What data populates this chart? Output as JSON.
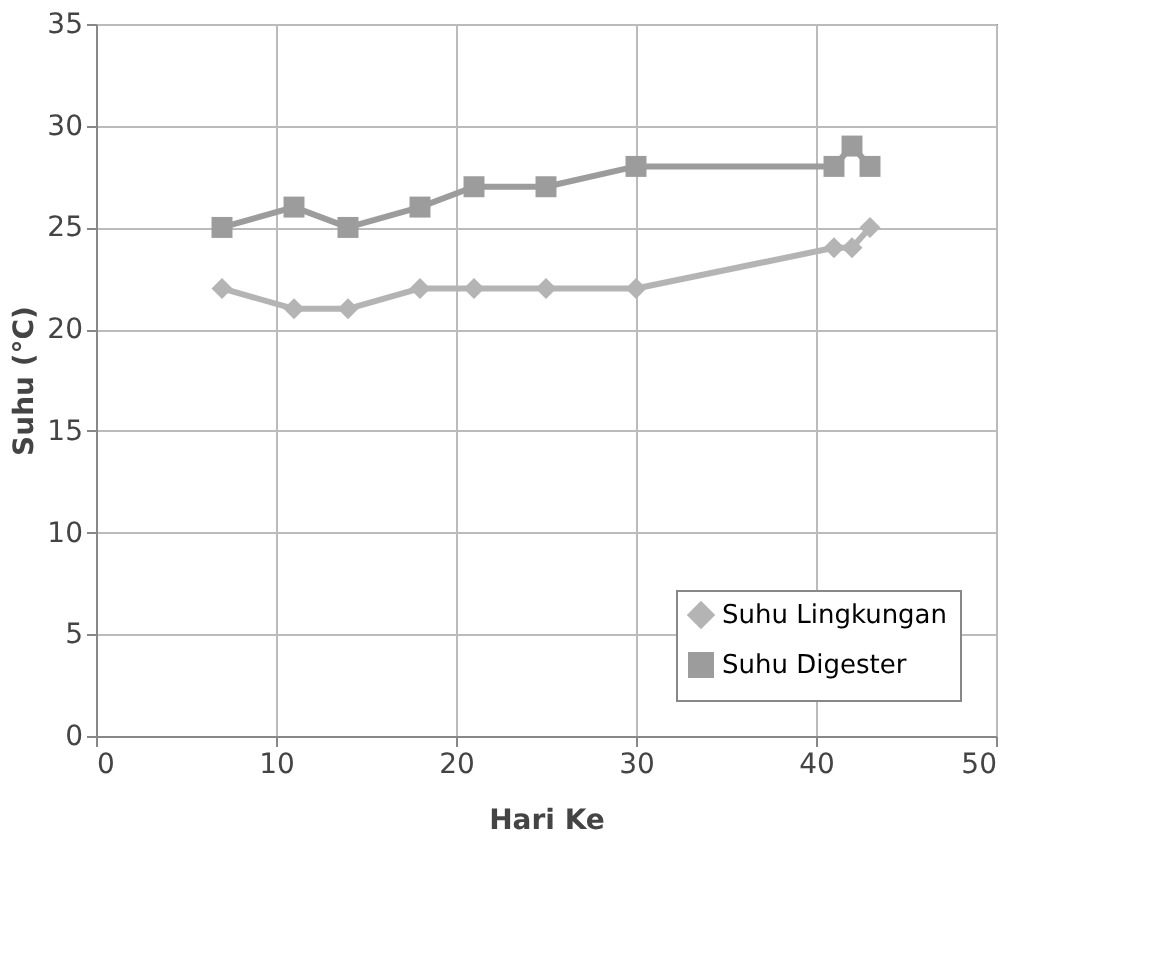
{
  "chart_data": {
    "type": "line",
    "xlabel": "Hari Ke",
    "ylabel": "Suhu (°C)",
    "xlim": [
      0,
      50
    ],
    "xticks": [
      0,
      10,
      20,
      30,
      40,
      50
    ],
    "ylim": [
      0,
      35
    ],
    "yticks": [
      0,
      5,
      10,
      15,
      20,
      25,
      30,
      35
    ],
    "grid": true,
    "legend": "bottom right",
    "series": [
      {
        "name": "Suhu Lingkungan",
        "color": "#b4b4b4",
        "marker": "diamond",
        "x": [
          7,
          11,
          14,
          18,
          21,
          25,
          30,
          41,
          42,
          43
        ],
        "values": [
          22,
          21,
          21,
          22,
          22,
          22,
          22,
          24,
          24,
          25
        ]
      },
      {
        "name": "Suhu Digester",
        "color": "#9c9c9c",
        "marker": "square",
        "x": [
          7,
          11,
          14,
          18,
          21,
          25,
          30,
          41,
          42,
          43
        ],
        "values": [
          25,
          26,
          25,
          26,
          27,
          27,
          28,
          28,
          29,
          28
        ]
      }
    ]
  }
}
